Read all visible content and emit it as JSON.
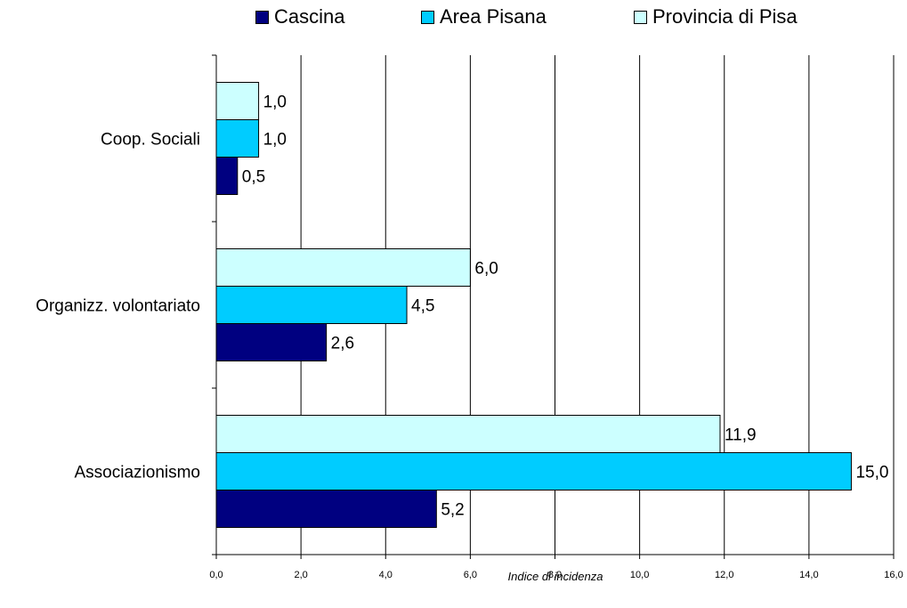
{
  "chart_data": {
    "type": "bar",
    "orientation": "horizontal",
    "categories": [
      "Coop. Sociali",
      "Organizz. volontariato",
      "Associazionismo"
    ],
    "series": [
      {
        "name": "Cascina",
        "color": "#000080",
        "values": [
          0.5,
          2.6,
          5.2
        ],
        "labels": [
          "0,5",
          "2,6",
          "5,2"
        ]
      },
      {
        "name": "Area Pisana",
        "color": "#00CCFF",
        "values": [
          1.0,
          4.5,
          15.0
        ],
        "labels": [
          "1,0",
          "4,5",
          "15,0"
        ]
      },
      {
        "name": "Provincia di Pisa",
        "color": "#CCFFFF",
        "values": [
          1.0,
          6.0,
          11.9
        ],
        "labels": [
          "1,0",
          "6,0",
          "11,9"
        ]
      }
    ],
    "xlabel": "Indice di incidenza",
    "xlim": [
      0,
      16
    ],
    "xticks": [
      "0,0",
      "2,0",
      "4,0",
      "6,0",
      "8,0",
      "10,0",
      "12,0",
      "14,0",
      "16,0"
    ],
    "grid": "vertical",
    "legend_position": "top"
  }
}
